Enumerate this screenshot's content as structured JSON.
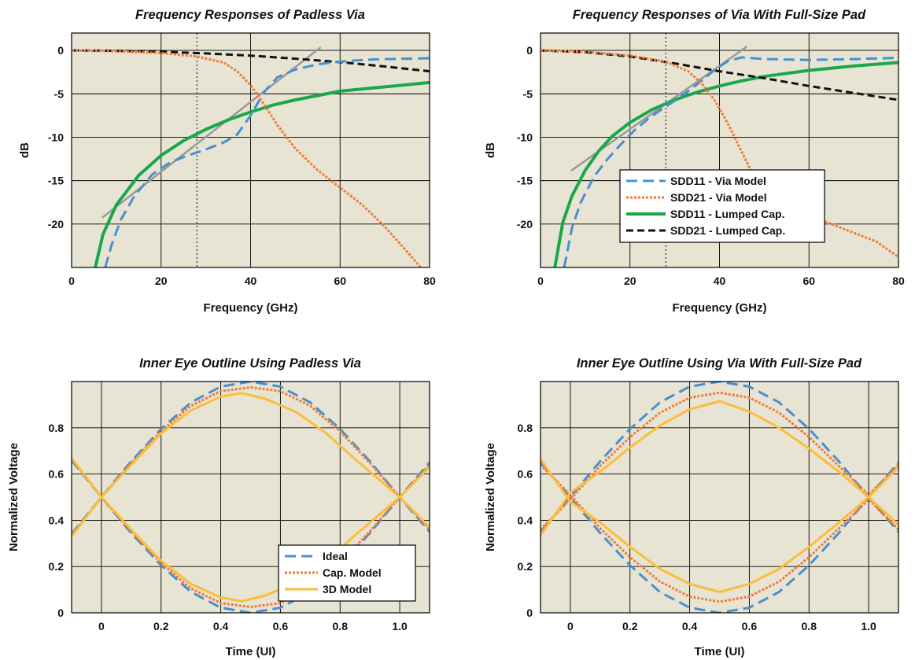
{
  "colors": {
    "plot_bg": "#e8e4d3",
    "grid": "#000000",
    "blue": "#4a8fcf",
    "orange": "#ef7a3a",
    "green": "#1aa84a",
    "black": "#111111",
    "gray": "#999999",
    "gold": "#fbbd3a"
  },
  "chart_data": [
    {
      "type": "line",
      "title": "Frequency Responses of Padless Via",
      "xlabel": "Frequency (GHz)",
      "ylabel": "dB",
      "xlim": [
        0,
        80
      ],
      "ylim": [
        -25,
        2
      ],
      "xticks": [
        0,
        20,
        40,
        60,
        80
      ],
      "xtick_labels": [
        "0",
        "20",
        "40",
        "60",
        "80"
      ],
      "yticks": [
        0,
        -5,
        -10,
        -15,
        -20
      ],
      "ytick_labels": [
        "0",
        "-5",
        "-10",
        "-15",
        "-20"
      ],
      "grid": true,
      "marker_line_x": 28,
      "series": [
        {
          "name": "SDD11 - Via Model",
          "style": "blue-dash",
          "x": [
            7.5,
            9,
            11,
            14,
            18,
            22,
            26,
            30,
            34,
            37,
            40,
            43,
            46,
            50,
            55,
            60,
            65,
            70,
            75,
            80
          ],
          "y": [
            -25,
            -22.3,
            -19.5,
            -16.8,
            -14.3,
            -12.9,
            -12.1,
            -11.4,
            -10.6,
            -9.7,
            -7.5,
            -4.8,
            -3.1,
            -2.2,
            -1.6,
            -1.3,
            -1.1,
            -1.0,
            -0.95,
            -0.9
          ]
        },
        {
          "name": "SDD21 - Via Model",
          "style": "orange-dot",
          "x": [
            0,
            10,
            20,
            28,
            34,
            37,
            40,
            43,
            46,
            50,
            55,
            60,
            65,
            70,
            75,
            78
          ],
          "y": [
            0,
            -0.1,
            -0.3,
            -0.7,
            -1.4,
            -2.4,
            -4.0,
            -6.2,
            -8.6,
            -11.3,
            -13.8,
            -15.8,
            -17.8,
            -20.3,
            -23.2,
            -25
          ]
        },
        {
          "name": "SDD11 - Lumped Cap.",
          "style": "green-solid",
          "x": [
            5.3,
            7,
            10,
            15,
            20,
            25,
            30,
            35,
            40,
            45,
            50,
            60,
            70,
            80
          ],
          "y": [
            -25,
            -21.2,
            -17.8,
            -14.4,
            -12.1,
            -10.4,
            -9.1,
            -8.0,
            -7.1,
            -6.3,
            -5.7,
            -4.7,
            -4.2,
            -3.7
          ]
        },
        {
          "name": "SDD21 - Lumped Cap.",
          "style": "black-dash",
          "x": [
            0,
            10,
            20,
            30,
            40,
            50,
            60,
            70,
            80
          ],
          "y": [
            0,
            -0.05,
            -0.15,
            -0.35,
            -0.6,
            -0.95,
            -1.35,
            -1.85,
            -2.4
          ]
        },
        {
          "name": "",
          "style": "gray-solid",
          "x": [
            7,
            55.5
          ],
          "y": [
            -19.2,
            0.3
          ]
        }
      ]
    },
    {
      "type": "line",
      "title": "Frequency Responses of Via With Full-Size Pad",
      "xlabel": "Frequency (GHz)",
      "ylabel": "dB",
      "xlim": [
        0,
        80
      ],
      "ylim": [
        -25,
        2
      ],
      "xticks": [
        0,
        20,
        40,
        60,
        80
      ],
      "xtick_labels": [
        "0",
        "20",
        "40",
        "60",
        "80"
      ],
      "yticks": [
        0,
        -5,
        -10,
        -15,
        -20
      ],
      "ytick_labels": [
        "0",
        "-5",
        "-10",
        "-15",
        "-20"
      ],
      "grid": true,
      "marker_line_x": 28,
      "legend_position": "center-right",
      "series": [
        {
          "name": "SDD11 - Via Model",
          "style": "blue-dash",
          "x": [
            5.3,
            7,
            9,
            12,
            15,
            18,
            21,
            24,
            27,
            30,
            33,
            36,
            39,
            42,
            45,
            50,
            60,
            70,
            80
          ],
          "y": [
            -25,
            -20.5,
            -17.5,
            -14.5,
            -12.5,
            -10.8,
            -9.2,
            -7.9,
            -6.8,
            -5.8,
            -4.7,
            -3.5,
            -2.2,
            -1.2,
            -0.8,
            -1.0,
            -1.1,
            -1.0,
            -0.85
          ]
        },
        {
          "name": "SDD21 - Via Model",
          "style": "orange-dot",
          "x": [
            0,
            10,
            20,
            28,
            33,
            36,
            39,
            41,
            43,
            45,
            47,
            49,
            51,
            53,
            55,
            60,
            65,
            70,
            75,
            80
          ],
          "y": [
            0,
            -0.15,
            -0.6,
            -1.3,
            -2.4,
            -3.8,
            -5.8,
            -7.6,
            -9.6,
            -11.7,
            -13.8,
            -15.5,
            -16.8,
            -17.6,
            -18.1,
            -19.0,
            -20.0,
            -21.0,
            -22.0,
            -23.8
          ]
        },
        {
          "name": "SDD11 - Lumped Cap.",
          "style": "green-solid",
          "x": [
            3.2,
            5,
            7,
            10,
            13,
            16,
            20,
            25,
            30,
            35,
            40,
            45,
            50,
            60,
            70,
            80
          ],
          "y": [
            -25,
            -19.8,
            -16.8,
            -13.8,
            -11.6,
            -9.9,
            -8.3,
            -6.8,
            -5.7,
            -4.8,
            -4.1,
            -3.5,
            -3.0,
            -2.3,
            -1.8,
            -1.4
          ]
        },
        {
          "name": "SDD21 - Lumped Cap.",
          "style": "black-dash",
          "x": [
            0,
            10,
            20,
            30,
            40,
            50,
            60,
            70,
            80
          ],
          "y": [
            0,
            -0.2,
            -0.7,
            -1.5,
            -2.4,
            -3.2,
            -4.1,
            -4.9,
            -5.7
          ]
        },
        {
          "name": "",
          "style": "gray-solid",
          "x": [
            7,
            46
          ],
          "y": [
            -13.8,
            0.4
          ]
        }
      ]
    },
    {
      "type": "line",
      "title": "Inner Eye Outline Using Padless Via",
      "xlabel": "Time (UI)",
      "ylabel": "Normalized Voltage",
      "xlim": [
        -0.1,
        1.1
      ],
      "ylim": [
        0,
        1.0
      ],
      "xticks": [
        0,
        0.2,
        0.4,
        0.6,
        0.8,
        1.0
      ],
      "xtick_labels": [
        "0",
        "0.2",
        "0.4",
        "0.6",
        "0.8",
        "1.0"
      ],
      "yticks": [
        0,
        0.2,
        0.4,
        0.6,
        0.8
      ],
      "ytick_labels": [
        "0",
        "0.2",
        "0.4",
        "0.6",
        "0.8"
      ],
      "grid": true,
      "legend_position": "lower-right",
      "series": [
        {
          "name": "Ideal",
          "style": "blue-dash",
          "x": [
            -0.1,
            0,
            0.1,
            0.2,
            0.3,
            0.4,
            0.5,
            0.6,
            0.7,
            0.8,
            0.9,
            1.0,
            1.1
          ],
          "y": [
            0.66,
            0.5,
            0.655,
            0.795,
            0.91,
            0.978,
            1.0,
            0.978,
            0.91,
            0.795,
            0.655,
            0.5,
            0.35
          ],
          "y2": [
            0.34,
            0.5,
            0.345,
            0.205,
            0.09,
            0.022,
            0.0,
            0.022,
            0.09,
            0.205,
            0.345,
            0.5,
            0.65
          ]
        },
        {
          "name": "Cap. Model",
          "style": "orange-dot",
          "x": [
            -0.1,
            0,
            0.1,
            0.2,
            0.3,
            0.4,
            0.5,
            0.6,
            0.7,
            0.8,
            0.9,
            1.0,
            1.1
          ],
          "y": [
            0.665,
            0.5,
            0.648,
            0.785,
            0.895,
            0.958,
            0.975,
            0.958,
            0.895,
            0.785,
            0.648,
            0.5,
            0.36
          ],
          "y2": [
            0.335,
            0.5,
            0.352,
            0.215,
            0.105,
            0.042,
            0.025,
            0.042,
            0.105,
            0.215,
            0.352,
            0.5,
            0.64
          ]
        },
        {
          "name": "3D Model",
          "style": "gold-solid",
          "x": [
            -0.1,
            0,
            0.1,
            0.2,
            0.3,
            0.4,
            0.47,
            0.55,
            0.65,
            0.75,
            0.85,
            0.95,
            1.0,
            1.1
          ],
          "y": [
            0.67,
            0.5,
            0.64,
            0.775,
            0.875,
            0.935,
            0.95,
            0.925,
            0.87,
            0.78,
            0.665,
            0.555,
            0.5,
            0.37
          ],
          "y2": [
            0.33,
            0.5,
            0.36,
            0.225,
            0.125,
            0.066,
            0.05,
            0.075,
            0.13,
            0.22,
            0.335,
            0.445,
            0.5,
            0.63
          ]
        }
      ]
    },
    {
      "type": "line",
      "title": "Inner Eye Outline Using Via With Full-Size Pad",
      "xlabel": "Time (UI)",
      "ylabel": "Normalized Voltage",
      "xlim": [
        -0.1,
        1.1
      ],
      "ylim": [
        0,
        1.0
      ],
      "xticks": [
        0,
        0.2,
        0.4,
        0.6,
        0.8,
        1.0
      ],
      "xtick_labels": [
        "0",
        "0.2",
        "0.4",
        "0.6",
        "0.8",
        "1.0"
      ],
      "yticks": [
        0,
        0.2,
        0.4,
        0.6,
        0.8
      ],
      "ytick_labels": [
        "0",
        "0.2",
        "0.4",
        "0.6",
        "0.8"
      ],
      "grid": true,
      "series": [
        {
          "name": "Ideal",
          "style": "blue-dash",
          "x": [
            -0.1,
            0,
            0.1,
            0.2,
            0.3,
            0.4,
            0.5,
            0.6,
            0.7,
            0.8,
            0.9,
            1.0,
            1.1
          ],
          "y": [
            0.35,
            0.5,
            0.655,
            0.795,
            0.91,
            0.978,
            1.0,
            0.978,
            0.91,
            0.795,
            0.655,
            0.5,
            0.65
          ],
          "y2": [
            0.65,
            0.5,
            0.345,
            0.205,
            0.09,
            0.022,
            0.0,
            0.022,
            0.09,
            0.205,
            0.345,
            0.5,
            0.35
          ]
        },
        {
          "name": "Cap. Model",
          "style": "orange-dot",
          "x": [
            -0.1,
            0,
            0.1,
            0.2,
            0.3,
            0.4,
            0.5,
            0.6,
            0.7,
            0.8,
            0.9,
            1.0,
            1.1
          ],
          "y": [
            0.36,
            0.49,
            0.635,
            0.76,
            0.865,
            0.93,
            0.952,
            0.93,
            0.865,
            0.76,
            0.635,
            0.51,
            0.64
          ],
          "y2": [
            0.64,
            0.51,
            0.365,
            0.24,
            0.135,
            0.07,
            0.048,
            0.07,
            0.135,
            0.24,
            0.365,
            0.49,
            0.36
          ]
        },
        {
          "name": "3D Model",
          "style": "gold-solid",
          "x": [
            -0.1,
            0,
            0.1,
            0.2,
            0.3,
            0.4,
            0.5,
            0.6,
            0.7,
            0.8,
            0.9,
            1.0,
            1.1
          ],
          "y": [
            0.335,
            0.52,
            0.61,
            0.715,
            0.81,
            0.88,
            0.915,
            0.87,
            0.8,
            0.71,
            0.61,
            0.5,
            0.63
          ],
          "y2": [
            0.665,
            0.48,
            0.39,
            0.285,
            0.19,
            0.125,
            0.09,
            0.125,
            0.19,
            0.285,
            0.39,
            0.5,
            0.38
          ]
        }
      ]
    }
  ]
}
